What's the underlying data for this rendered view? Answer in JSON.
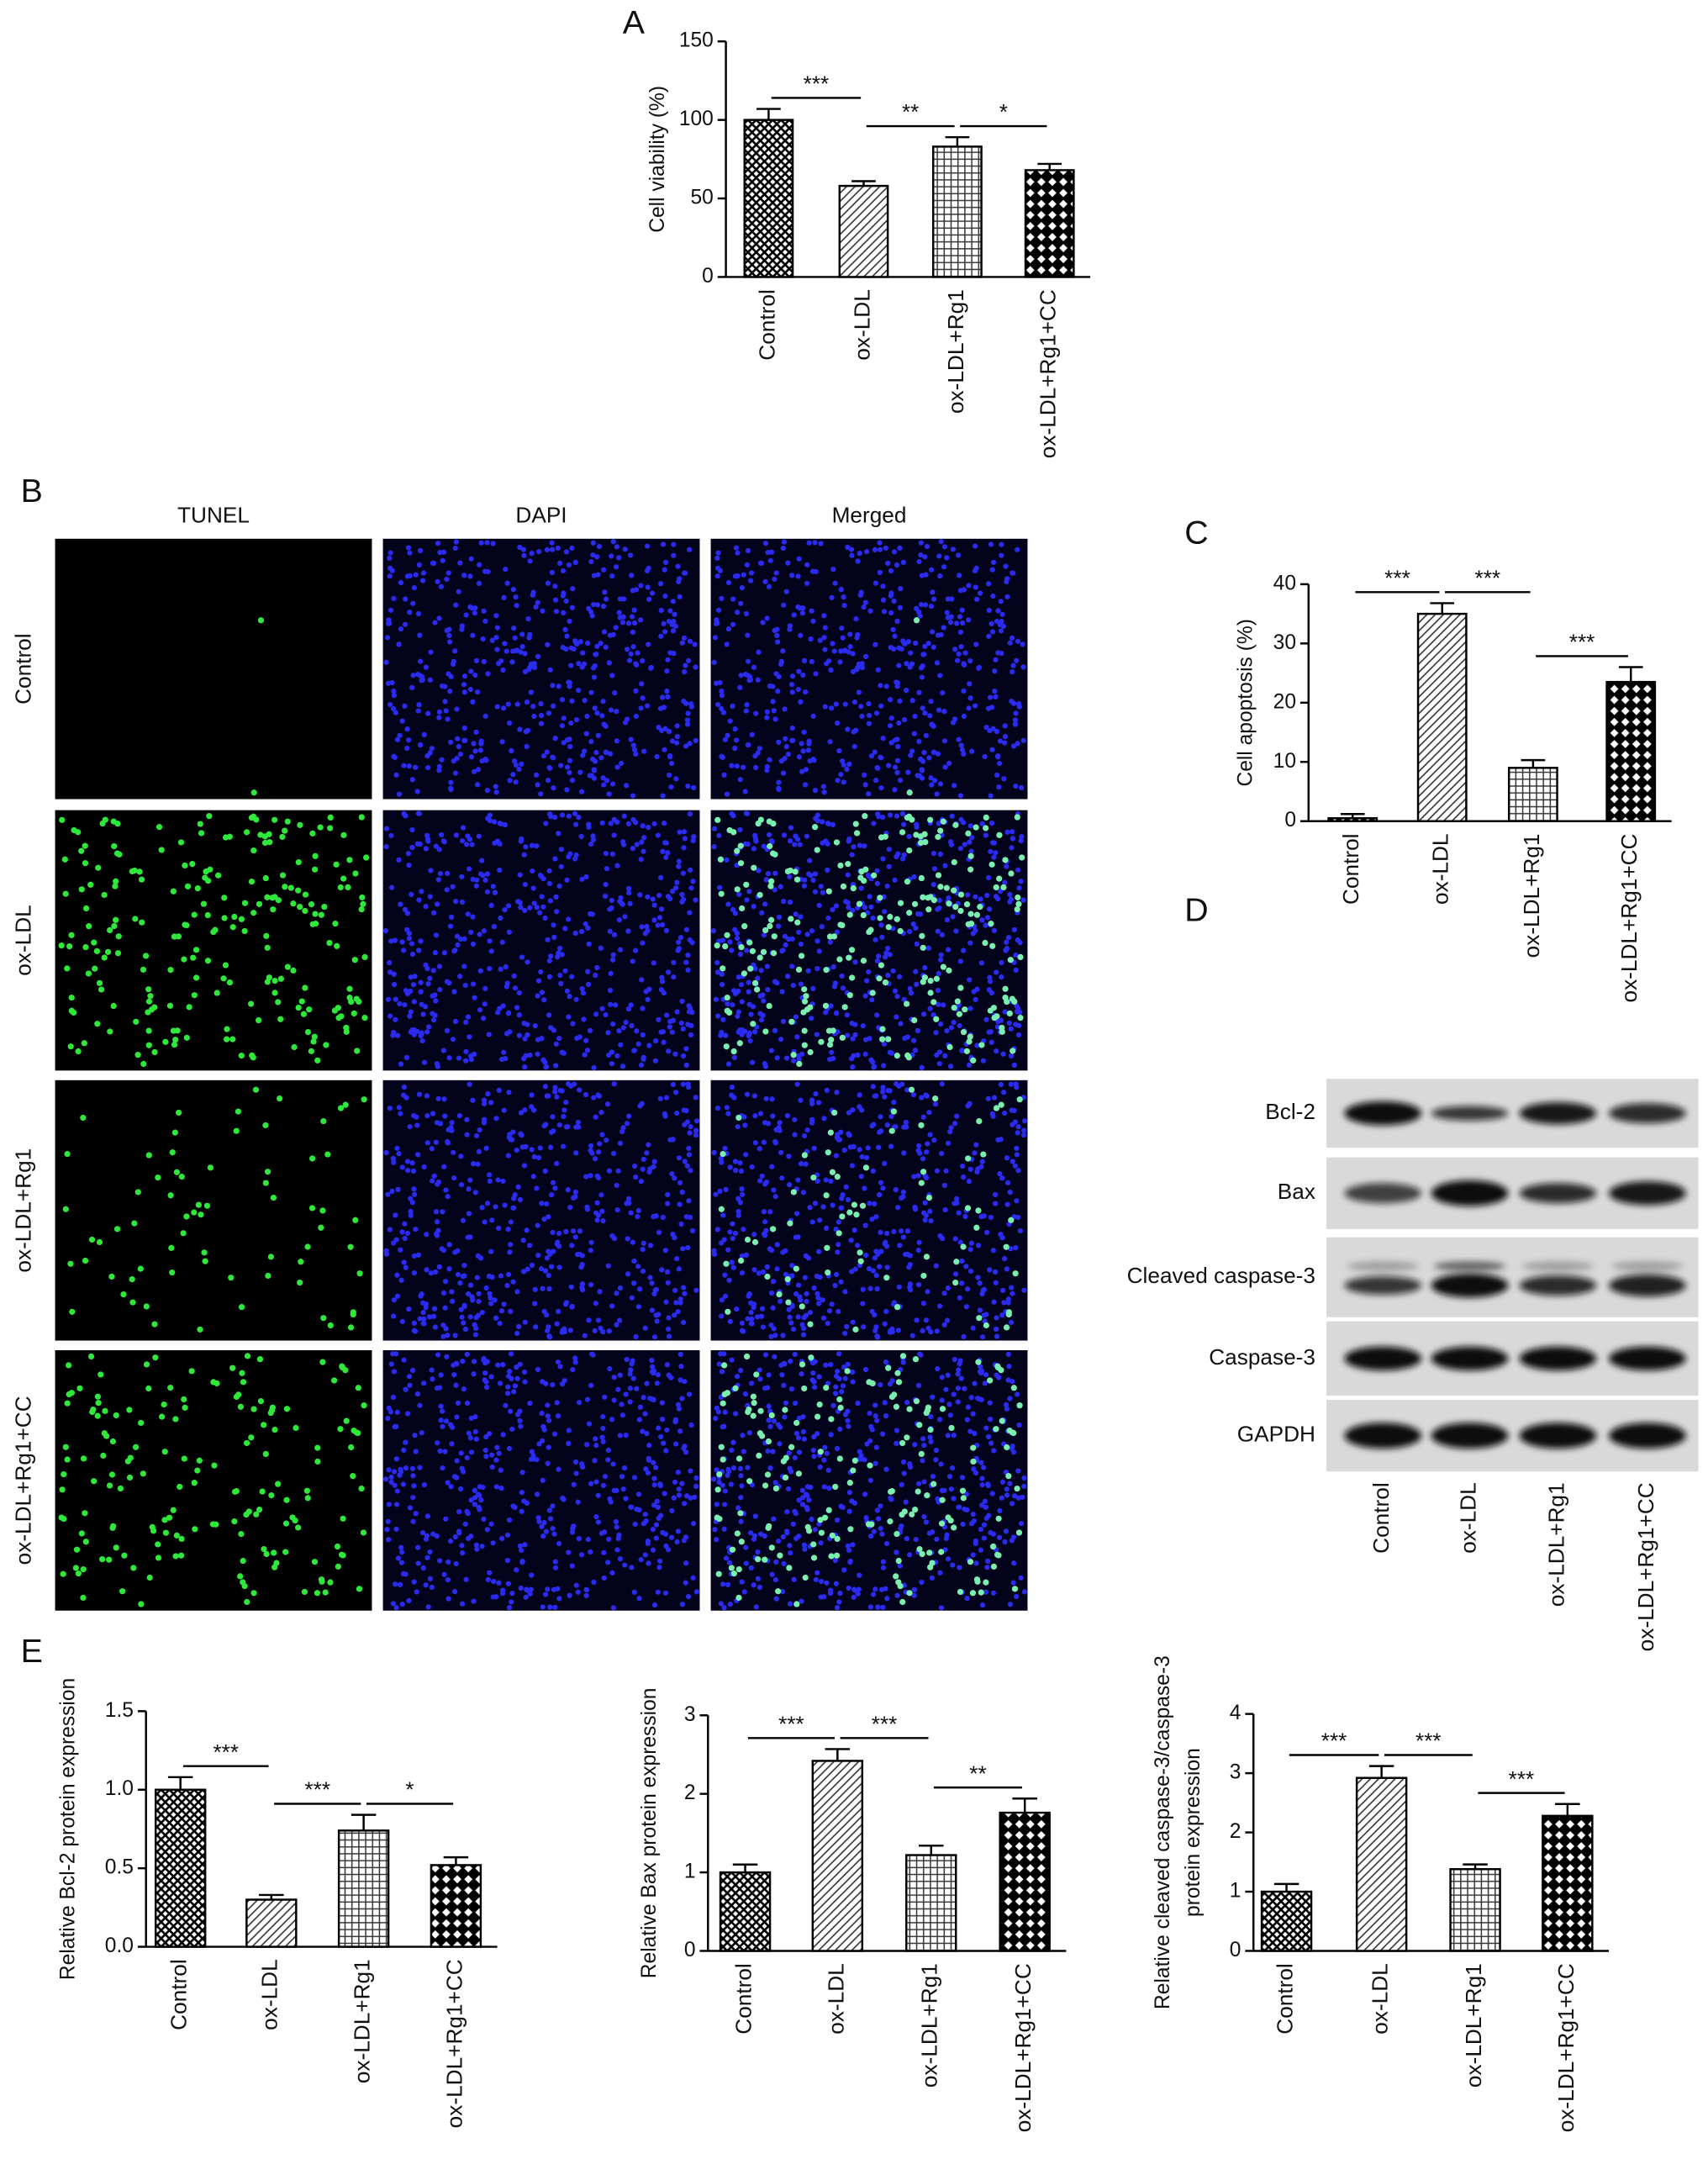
{
  "panel_labels": [
    "A",
    "B",
    "C",
    "D",
    "E"
  ],
  "microscopy": {
    "columns": [
      "TUNEL",
      "DAPI",
      "Merged"
    ],
    "rows": [
      "Control",
      "ox-LDL",
      "ox-LDL+Rg1",
      "ox-LDL+Rg1+CC"
    ]
  },
  "western_blot": {
    "proteins": [
      "Bcl-2",
      "Bax",
      "Cleaved caspase-3",
      "Caspase-3",
      "GAPDH"
    ],
    "lanes": [
      "Control",
      "ox-LDL",
      "ox-LDL+Rg1",
      "ox-LDL+Rg1+CC"
    ]
  },
  "chart_data": [
    {
      "type": "bar",
      "y_label": "Cell viability (%)",
      "categories": [
        "Control",
        "ox-LDL",
        "ox-LDL+Rg1",
        "ox-LDL+Rg1+CC"
      ],
      "values": [
        100,
        58,
        83,
        68
      ],
      "errors": [
        7,
        3,
        6,
        4
      ],
      "patterns": [
        "checker",
        "diagonal",
        "grid",
        "diamond"
      ],
      "ylim": [
        0,
        150
      ],
      "yticks": [
        0,
        50,
        100,
        150
      ],
      "annotations": [
        {
          "label": "***",
          "between": [
            0,
            1
          ]
        },
        {
          "label": "**",
          "between": [
            1,
            2
          ]
        },
        {
          "label": "*",
          "between": [
            2,
            3
          ]
        }
      ]
    },
    {
      "type": "bar",
      "y_label": "Cell apoptosis (%)",
      "categories": [
        "Control",
        "ox-LDL",
        "ox-LDL+Rg1",
        "ox-LDL+Rg1+CC"
      ],
      "values": [
        0.5,
        35,
        9,
        23.5
      ],
      "errors": [
        0.7,
        1.8,
        1.3,
        2.5
      ],
      "patterns": [
        "checker",
        "diagonal",
        "grid",
        "diamond"
      ],
      "ylim": [
        0,
        40
      ],
      "yticks": [
        0,
        10,
        20,
        30,
        40
      ],
      "annotations": [
        {
          "label": "***",
          "between": [
            0,
            1
          ]
        },
        {
          "label": "***",
          "between": [
            1,
            2
          ]
        },
        {
          "label": "***",
          "between": [
            2,
            3
          ]
        }
      ]
    },
    {
      "type": "bar",
      "y_label": "Relative Bcl-2 protein expression",
      "categories": [
        "Control",
        "ox-LDL",
        "ox-LDL+Rg1",
        "ox-LDL+Rg1+CC"
      ],
      "values": [
        1.0,
        0.3,
        0.74,
        0.52
      ],
      "errors": [
        0.08,
        0.03,
        0.1,
        0.05
      ],
      "patterns": [
        "checker",
        "diagonal",
        "grid",
        "diamond"
      ],
      "ylim": [
        0,
        1.5
      ],
      "yticks": [
        {
          "value": 0,
          "label": "0.0"
        },
        0.5,
        {
          "value": 1,
          "label": "1.0"
        },
        1.5
      ],
      "annotations": [
        {
          "label": "***",
          "between": [
            0,
            1
          ]
        },
        {
          "label": "***",
          "between": [
            1,
            2
          ]
        },
        {
          "label": "*",
          "between": [
            2,
            3
          ]
        }
      ]
    },
    {
      "type": "bar",
      "y_label": "Relative Bax protein expression",
      "categories": [
        "Control",
        "ox-LDL",
        "ox-LDL+Rg1",
        "ox-LDL+Rg1+CC"
      ],
      "values": [
        1.0,
        2.42,
        1.22,
        1.76
      ],
      "errors": [
        0.1,
        0.15,
        0.12,
        0.18
      ],
      "patterns": [
        "checker",
        "diagonal",
        "grid",
        "diamond"
      ],
      "ylim": [
        0,
        3
      ],
      "yticks": [
        0,
        1,
        2,
        3
      ],
      "annotations": [
        {
          "label": "***",
          "between": [
            0,
            1
          ]
        },
        {
          "label": "***",
          "between": [
            1,
            2
          ]
        },
        {
          "label": "**",
          "between": [
            2,
            3
          ]
        }
      ]
    },
    {
      "type": "bar",
      "y_label": [
        "Relative cleaved caspase-3/caspase-3",
        "protein expression"
      ],
      "categories": [
        "Control",
        "ox-LDL",
        "ox-LDL+Rg1",
        "ox-LDL+Rg1+CC"
      ],
      "values": [
        1.0,
        2.92,
        1.38,
        2.28
      ],
      "errors": [
        0.13,
        0.2,
        0.08,
        0.2
      ],
      "patterns": [
        "checker",
        "diagonal",
        "grid",
        "diamond"
      ],
      "ylim": [
        0,
        4
      ],
      "yticks": [
        0,
        1,
        2,
        3,
        4
      ],
      "annotations": [
        {
          "label": "***",
          "between": [
            0,
            1
          ]
        },
        {
          "label": "***",
          "between": [
            1,
            2
          ]
        },
        {
          "label": "***",
          "between": [
            2,
            3
          ]
        }
      ]
    }
  ]
}
